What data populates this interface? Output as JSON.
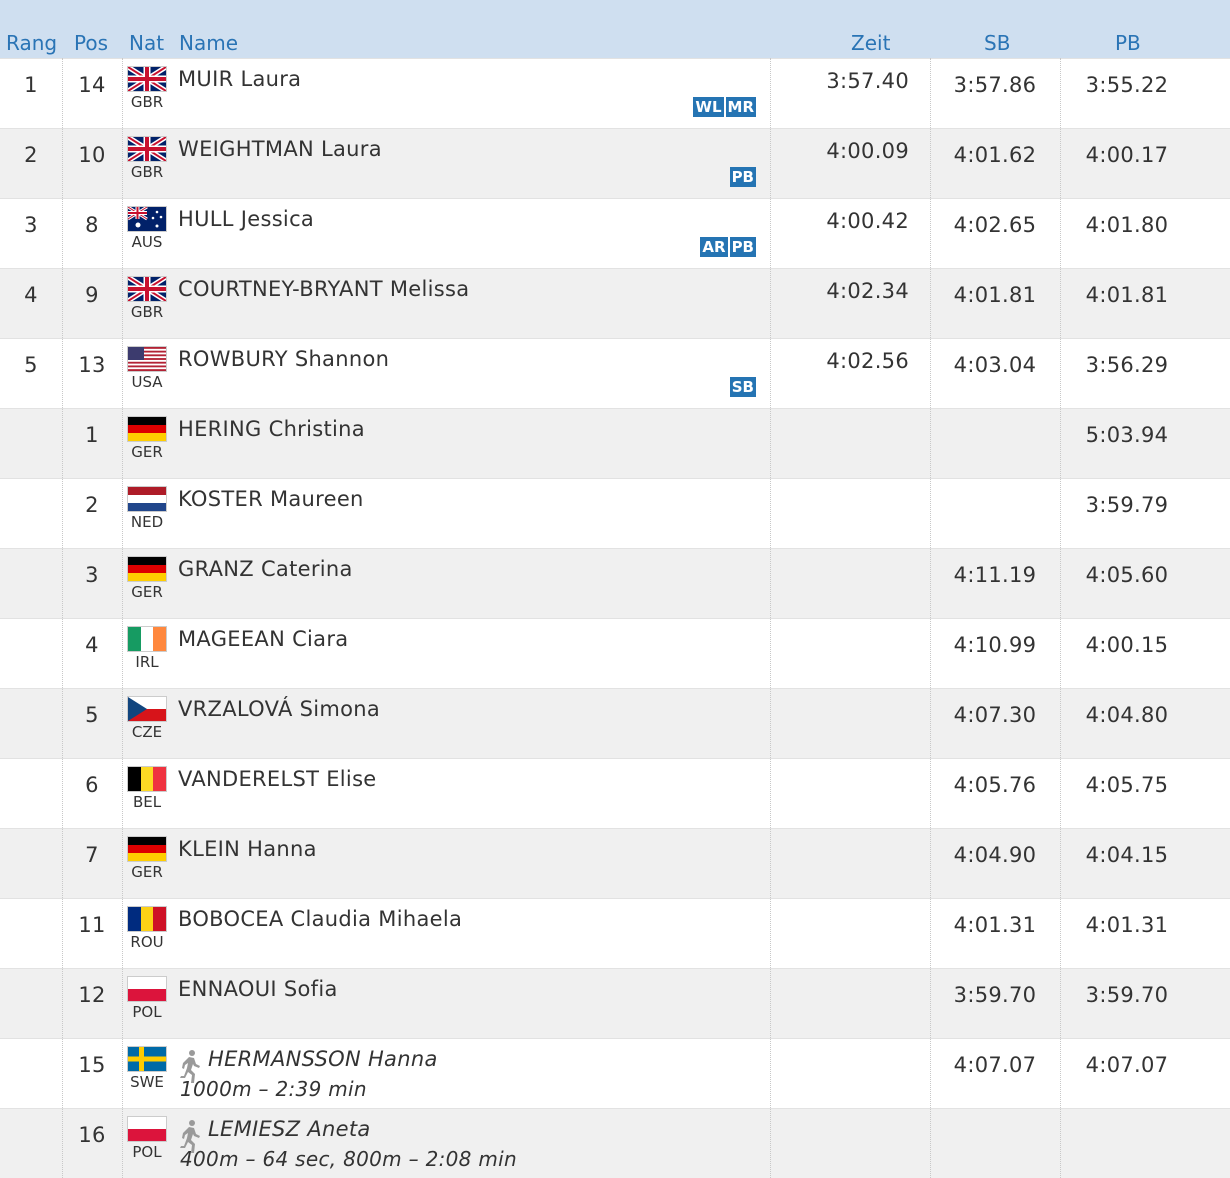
{
  "table": {
    "header": [
      "Rang",
      "Pos",
      "Nat",
      "Name",
      "Zeit",
      "SB",
      "PB"
    ],
    "rows": [
      {
        "rang": "1",
        "pos": "14",
        "nat": "GBR",
        "name": "MUIR Laura",
        "badges": [
          "WL",
          "MR"
        ],
        "zeit": "3:57.40",
        "sb": "3:57.86",
        "pb": "3:55.22"
      },
      {
        "rang": "2",
        "pos": "10",
        "nat": "GBR",
        "name": "WEIGHTMAN Laura",
        "badges": [
          "PB"
        ],
        "zeit": "4:00.09",
        "sb": "4:01.62",
        "pb": "4:00.17"
      },
      {
        "rang": "3",
        "pos": "8",
        "nat": "AUS",
        "name": "HULL Jessica",
        "badges": [
          "AR",
          "PB"
        ],
        "zeit": "4:00.42",
        "sb": "4:02.65",
        "pb": "4:01.80"
      },
      {
        "rang": "4",
        "pos": "9",
        "nat": "GBR",
        "name": "COURTNEY-BRYANT Melissa",
        "zeit": "4:02.34",
        "sb": "4:01.81",
        "pb": "4:01.81"
      },
      {
        "rang": "5",
        "pos": "13",
        "nat": "USA",
        "name": "ROWBURY Shannon",
        "badges": [
          "SB"
        ],
        "zeit": "4:02.56",
        "sb": "4:03.04",
        "pb": "3:56.29"
      },
      {
        "pos": "1",
        "nat": "GER",
        "name": "HERING Christina",
        "pb": "5:03.94"
      },
      {
        "pos": "2",
        "nat": "NED",
        "name": "KOSTER Maureen",
        "pb": "3:59.79"
      },
      {
        "pos": "3",
        "nat": "GER",
        "name": "GRANZ Caterina",
        "sb": "4:11.19",
        "pb": "4:05.60"
      },
      {
        "pos": "4",
        "nat": "IRL",
        "name": "MAGEEAN Ciara",
        "sb": "4:10.99",
        "pb": "4:00.15"
      },
      {
        "pos": "5",
        "nat": "CZE",
        "name": "VRZALOVÁ Simona",
        "sb": "4:07.30",
        "pb": "4:04.80"
      },
      {
        "pos": "6",
        "nat": "BEL",
        "name": "VANDERELST Elise",
        "sb": "4:05.76",
        "pb": "4:05.75"
      },
      {
        "pos": "7",
        "nat": "GER",
        "name": "KLEIN Hanna",
        "sb": "4:04.90",
        "pb": "4:04.15"
      },
      {
        "pos": "11",
        "nat": "ROU",
        "name": "BOBOCEA Claudia Mihaela",
        "sb": "4:01.31",
        "pb": "4:01.31"
      },
      {
        "pos": "12",
        "nat": "POL",
        "name": "ENNAOUI Sofia",
        "sb": "3:59.70",
        "pb": "3:59.70"
      },
      {
        "pos": "15",
        "nat": "SWE",
        "name": "HERMANSSON Hanna",
        "note": "1000m – 2:39 min",
        "sb": "4:07.07",
        "pb": "4:07.07"
      },
      {
        "pos": "16",
        "nat": "POL",
        "name": "LEMIESZ Aneta",
        "note": "400m – 64 sec, 800m – 2:08 min"
      }
    ]
  }
}
